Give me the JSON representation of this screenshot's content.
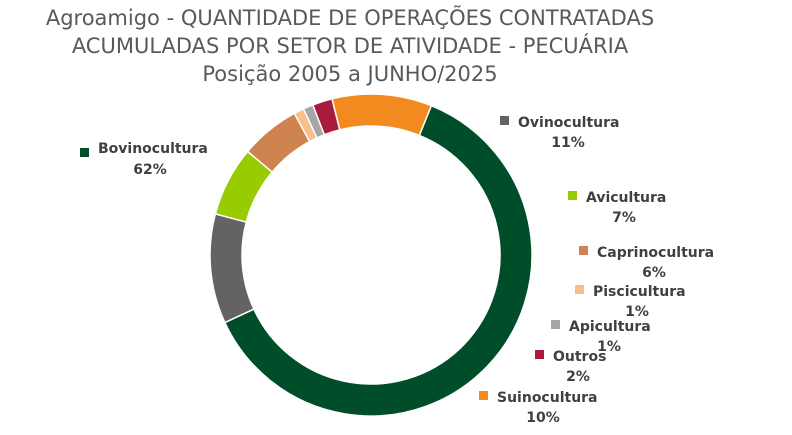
{
  "chart_data": {
    "type": "pie",
    "style": "doughnut",
    "title_lines": [
      "Agroamigo - QUANTIDADE DE OPERAÇÕES CONTRATADAS",
      "ACUMULADAS POR SETOR DE ATIVIDADE - PECUÁRIA",
      "Posição 2005 a JUNHO/2025"
    ],
    "slices": [
      {
        "label": "Bovinocultura",
        "value": 62,
        "display": "62%",
        "color": "#004d2a"
      },
      {
        "label": "Ovinocultura",
        "value": 11,
        "display": "11%",
        "color": "#636363"
      },
      {
        "label": "Avicultura",
        "value": 7,
        "display": "7%",
        "color": "#99cc00"
      },
      {
        "label": "Caprinocultura",
        "value": 6,
        "display": "6%",
        "color": "#cf8450"
      },
      {
        "label": "Piscicultura",
        "value": 1,
        "display": "1%",
        "color": "#f5c08c"
      },
      {
        "label": "Apicultura",
        "value": 1,
        "display": "1%",
        "color": "#a6a6a6"
      },
      {
        "label": "Outros",
        "value": 2,
        "display": "2%",
        "color": "#a91b3e"
      },
      {
        "label": "Suinocultura",
        "value": 10,
        "display": "10%",
        "color": "#f28a1f"
      }
    ],
    "legend": "labels beside slices"
  }
}
